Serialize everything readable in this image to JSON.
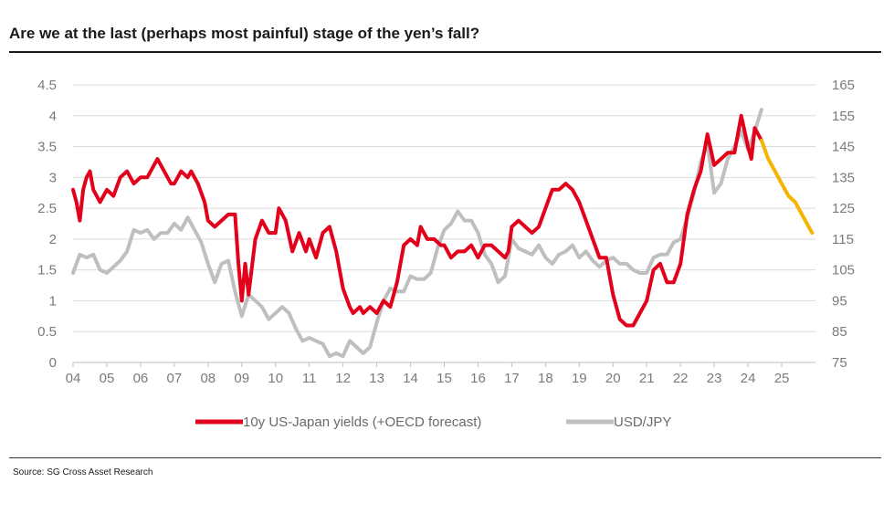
{
  "title": "Are we at the last (perhaps most painful) stage of the yen’s fall?",
  "source": "Source: SG Cross Asset Research",
  "chart_data": {
    "type": "line",
    "x_ticks": [
      "04",
      "05",
      "06",
      "07",
      "08",
      "09",
      "10",
      "11",
      "12",
      "13",
      "14",
      "15",
      "16",
      "17",
      "18",
      "19",
      "20",
      "21",
      "22",
      "23",
      "24",
      "25"
    ],
    "y_left": {
      "ticks": [
        "0",
        "0.5",
        "1",
        "1.5",
        "2",
        "2.5",
        "3",
        "3.5",
        "4",
        "4.5"
      ],
      "ylim": [
        0,
        4.5
      ]
    },
    "y_right": {
      "ticks": [
        "75",
        "85",
        "95",
        "105",
        "115",
        "125",
        "135",
        "145",
        "155",
        "165"
      ],
      "ylim": [
        75,
        165
      ]
    },
    "grid": true,
    "legend_position": "bottom",
    "series": [
      {
        "name": "10y US-Japan yields (+OECD forecast)",
        "axis": "left",
        "color": "#e2001a",
        "points": [
          [
            2004.0,
            2.8
          ],
          [
            2004.1,
            2.6
          ],
          [
            2004.2,
            2.3
          ],
          [
            2004.3,
            2.8
          ],
          [
            2004.4,
            3.0
          ],
          [
            2004.5,
            3.1
          ],
          [
            2004.6,
            2.8
          ],
          [
            2004.8,
            2.6
          ],
          [
            2005.0,
            2.8
          ],
          [
            2005.2,
            2.7
          ],
          [
            2005.4,
            3.0
          ],
          [
            2005.6,
            3.1
          ],
          [
            2005.8,
            2.9
          ],
          [
            2006.0,
            3.0
          ],
          [
            2006.2,
            3.0
          ],
          [
            2006.4,
            3.2
          ],
          [
            2006.5,
            3.3
          ],
          [
            2006.7,
            3.1
          ],
          [
            2006.9,
            2.9
          ],
          [
            2007.0,
            2.9
          ],
          [
            2007.2,
            3.1
          ],
          [
            2007.4,
            3.0
          ],
          [
            2007.5,
            3.1
          ],
          [
            2007.7,
            2.9
          ],
          [
            2007.9,
            2.6
          ],
          [
            2008.0,
            2.3
          ],
          [
            2008.2,
            2.2
          ],
          [
            2008.4,
            2.3
          ],
          [
            2008.6,
            2.4
          ],
          [
            2008.8,
            2.4
          ],
          [
            2008.9,
            1.6
          ],
          [
            2009.0,
            1.0
          ],
          [
            2009.1,
            1.6
          ],
          [
            2009.2,
            1.1
          ],
          [
            2009.4,
            2.0
          ],
          [
            2009.6,
            2.3
          ],
          [
            2009.8,
            2.1
          ],
          [
            2010.0,
            2.1
          ],
          [
            2010.1,
            2.5
          ],
          [
            2010.3,
            2.3
          ],
          [
            2010.5,
            1.8
          ],
          [
            2010.7,
            2.1
          ],
          [
            2010.9,
            1.8
          ],
          [
            2011.0,
            2.0
          ],
          [
            2011.2,
            1.7
          ],
          [
            2011.4,
            2.1
          ],
          [
            2011.6,
            2.2
          ],
          [
            2011.8,
            1.8
          ],
          [
            2012.0,
            1.2
          ],
          [
            2012.2,
            0.9
          ],
          [
            2012.3,
            0.8
          ],
          [
            2012.5,
            0.9
          ],
          [
            2012.6,
            0.8
          ],
          [
            2012.8,
            0.9
          ],
          [
            2013.0,
            0.8
          ],
          [
            2013.2,
            1.0
          ],
          [
            2013.4,
            0.9
          ],
          [
            2013.6,
            1.3
          ],
          [
            2013.8,
            1.9
          ],
          [
            2014.0,
            2.0
          ],
          [
            2014.2,
            1.9
          ],
          [
            2014.3,
            2.2
          ],
          [
            2014.5,
            2.0
          ],
          [
            2014.7,
            2.0
          ],
          [
            2014.9,
            1.9
          ],
          [
            2015.0,
            1.9
          ],
          [
            2015.2,
            1.7
          ],
          [
            2015.4,
            1.8
          ],
          [
            2015.6,
            1.8
          ],
          [
            2015.8,
            1.9
          ],
          [
            2016.0,
            1.7
          ],
          [
            2016.2,
            1.9
          ],
          [
            2016.4,
            1.9
          ],
          [
            2016.6,
            1.8
          ],
          [
            2016.8,
            1.7
          ],
          [
            2016.9,
            1.8
          ],
          [
            2017.0,
            2.2
          ],
          [
            2017.2,
            2.3
          ],
          [
            2017.4,
            2.2
          ],
          [
            2017.6,
            2.1
          ],
          [
            2017.8,
            2.2
          ],
          [
            2018.0,
            2.5
          ],
          [
            2018.2,
            2.8
          ],
          [
            2018.4,
            2.8
          ],
          [
            2018.6,
            2.9
          ],
          [
            2018.8,
            2.8
          ],
          [
            2019.0,
            2.6
          ],
          [
            2019.2,
            2.3
          ],
          [
            2019.4,
            2.0
          ],
          [
            2019.6,
            1.7
          ],
          [
            2019.8,
            1.7
          ],
          [
            2020.0,
            1.1
          ],
          [
            2020.2,
            0.7
          ],
          [
            2020.4,
            0.6
          ],
          [
            2020.6,
            0.6
          ],
          [
            2020.8,
            0.8
          ],
          [
            2021.0,
            1.0
          ],
          [
            2021.2,
            1.5
          ],
          [
            2021.4,
            1.6
          ],
          [
            2021.6,
            1.3
          ],
          [
            2021.8,
            1.3
          ],
          [
            2022.0,
            1.6
          ],
          [
            2022.2,
            2.4
          ],
          [
            2022.4,
            2.8
          ],
          [
            2022.6,
            3.1
          ],
          [
            2022.8,
            3.7
          ],
          [
            2023.0,
            3.2
          ],
          [
            2023.2,
            3.3
          ],
          [
            2023.4,
            3.4
          ],
          [
            2023.6,
            3.4
          ],
          [
            2023.8,
            4.0
          ],
          [
            2024.0,
            3.5
          ],
          [
            2024.1,
            3.3
          ],
          [
            2024.2,
            3.8
          ],
          [
            2024.4,
            3.6
          ]
        ]
      },
      {
        "name": "10y US-Japan yields (+OECD forecast)",
        "axis": "left",
        "color": "#f5b400",
        "forecast": true,
        "points": [
          [
            2024.4,
            3.6
          ],
          [
            2024.6,
            3.3
          ],
          [
            2024.8,
            3.1
          ],
          [
            2025.0,
            2.9
          ],
          [
            2025.2,
            2.7
          ],
          [
            2025.4,
            2.6
          ],
          [
            2025.6,
            2.4
          ],
          [
            2025.9,
            2.1
          ]
        ]
      },
      {
        "name": "USD/JPY",
        "axis": "right",
        "color": "#bfbfbf",
        "points": [
          [
            2004.0,
            104
          ],
          [
            2004.2,
            110
          ],
          [
            2004.4,
            109
          ],
          [
            2004.6,
            110
          ],
          [
            2004.8,
            105
          ],
          [
            2005.0,
            104
          ],
          [
            2005.2,
            106
          ],
          [
            2005.4,
            108
          ],
          [
            2005.6,
            111
          ],
          [
            2005.8,
            118
          ],
          [
            2006.0,
            117
          ],
          [
            2006.2,
            118
          ],
          [
            2006.4,
            115
          ],
          [
            2006.6,
            117
          ],
          [
            2006.8,
            117
          ],
          [
            2007.0,
            120
          ],
          [
            2007.2,
            118
          ],
          [
            2007.4,
            122
          ],
          [
            2007.6,
            118
          ],
          [
            2007.8,
            114
          ],
          [
            2008.0,
            107
          ],
          [
            2008.2,
            101
          ],
          [
            2008.4,
            107
          ],
          [
            2008.6,
            108
          ],
          [
            2008.8,
            98
          ],
          [
            2009.0,
            90
          ],
          [
            2009.2,
            97
          ],
          [
            2009.4,
            95
          ],
          [
            2009.6,
            93
          ],
          [
            2009.8,
            89
          ],
          [
            2010.0,
            91
          ],
          [
            2010.2,
            93
          ],
          [
            2010.4,
            91
          ],
          [
            2010.6,
            86
          ],
          [
            2010.8,
            82
          ],
          [
            2011.0,
            83
          ],
          [
            2011.2,
            82
          ],
          [
            2011.4,
            81
          ],
          [
            2011.6,
            77
          ],
          [
            2011.8,
            78
          ],
          [
            2012.0,
            77
          ],
          [
            2012.2,
            82
          ],
          [
            2012.4,
            80
          ],
          [
            2012.6,
            78
          ],
          [
            2012.8,
            80
          ],
          [
            2013.0,
            88
          ],
          [
            2013.2,
            95
          ],
          [
            2013.4,
            99
          ],
          [
            2013.6,
            98
          ],
          [
            2013.8,
            98
          ],
          [
            2014.0,
            103
          ],
          [
            2014.2,
            102
          ],
          [
            2014.4,
            102
          ],
          [
            2014.6,
            104
          ],
          [
            2014.8,
            112
          ],
          [
            2015.0,
            118
          ],
          [
            2015.2,
            120
          ],
          [
            2015.4,
            124
          ],
          [
            2015.6,
            121
          ],
          [
            2015.8,
            121
          ],
          [
            2016.0,
            117
          ],
          [
            2016.2,
            110
          ],
          [
            2016.4,
            107
          ],
          [
            2016.6,
            101
          ],
          [
            2016.8,
            103
          ],
          [
            2017.0,
            115
          ],
          [
            2017.2,
            112
          ],
          [
            2017.4,
            111
          ],
          [
            2017.6,
            110
          ],
          [
            2017.8,
            113
          ],
          [
            2018.0,
            109
          ],
          [
            2018.2,
            107
          ],
          [
            2018.4,
            110
          ],
          [
            2018.6,
            111
          ],
          [
            2018.8,
            113
          ],
          [
            2019.0,
            109
          ],
          [
            2019.2,
            111
          ],
          [
            2019.4,
            108
          ],
          [
            2019.6,
            106
          ],
          [
            2019.8,
            108
          ],
          [
            2020.0,
            109
          ],
          [
            2020.2,
            107
          ],
          [
            2020.4,
            107
          ],
          [
            2020.6,
            105
          ],
          [
            2020.8,
            104
          ],
          [
            2021.0,
            104
          ],
          [
            2021.2,
            109
          ],
          [
            2021.4,
            110
          ],
          [
            2021.6,
            110
          ],
          [
            2021.8,
            114
          ],
          [
            2022.0,
            115
          ],
          [
            2022.2,
            122
          ],
          [
            2022.4,
            130
          ],
          [
            2022.6,
            140
          ],
          [
            2022.8,
            146
          ],
          [
            2023.0,
            130
          ],
          [
            2023.2,
            133
          ],
          [
            2023.4,
            141
          ],
          [
            2023.6,
            145
          ],
          [
            2023.8,
            150
          ],
          [
            2024.0,
            144
          ],
          [
            2024.2,
            150
          ],
          [
            2024.4,
            157
          ]
        ]
      }
    ]
  }
}
